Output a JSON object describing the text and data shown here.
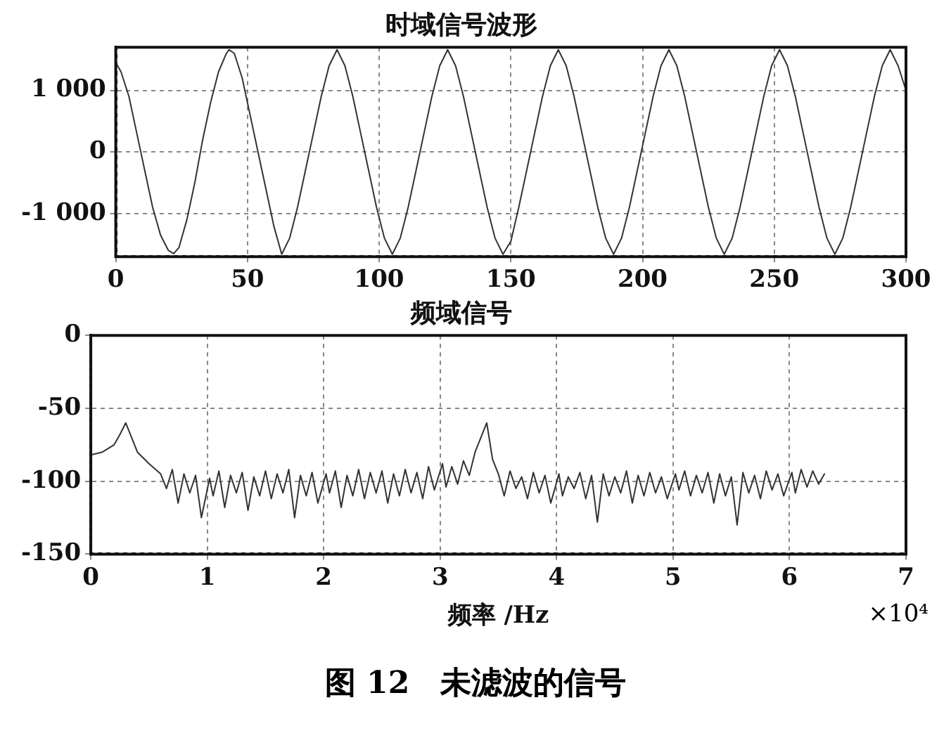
{
  "chart_data": [
    {
      "type": "line",
      "title": "时域信号波形",
      "color": "#333333",
      "grid": true,
      "x": [
        0,
        2,
        5,
        8,
        11,
        14,
        17,
        20,
        22,
        24,
        27,
        30,
        33,
        36,
        39,
        42,
        43,
        45,
        48,
        51,
        54,
        57,
        60,
        63,
        66,
        69,
        72,
        75,
        78,
        81,
        84,
        87,
        90,
        93,
        96,
        99,
        102,
        105,
        108,
        111,
        114,
        117,
        120,
        123,
        126,
        129,
        132,
        135,
        138,
        141,
        144,
        147,
        150,
        153,
        156,
        159,
        162,
        165,
        168,
        171,
        174,
        177,
        180,
        183,
        186,
        189,
        192,
        195,
        198,
        201,
        204,
        207,
        210,
        213,
        216,
        219,
        222,
        225,
        228,
        231,
        234,
        237,
        240,
        243,
        246,
        249,
        252,
        255,
        258,
        261,
        264,
        267,
        270,
        273,
        276,
        279,
        282,
        285,
        288,
        291,
        294,
        297,
        300
      ],
      "values": [
        1450,
        1300,
        900,
        300,
        -300,
        -900,
        -1350,
        -1600,
        -1650,
        -1550,
        -1100,
        -500,
        200,
        800,
        1300,
        1600,
        1660,
        1600,
        1200,
        600,
        0,
        -600,
        -1200,
        -1660,
        -1400,
        -900,
        -300,
        300,
        900,
        1400,
        1660,
        1400,
        900,
        300,
        -300,
        -900,
        -1400,
        -1660,
        -1400,
        -900,
        -300,
        300,
        900,
        1400,
        1660,
        1400,
        900,
        300,
        -300,
        -900,
        -1400,
        -1660,
        -1450,
        -900,
        -300,
        300,
        900,
        1400,
        1660,
        1400,
        900,
        300,
        -300,
        -900,
        -1400,
        -1660,
        -1400,
        -900,
        -300,
        300,
        900,
        1400,
        1660,
        1400,
        900,
        300,
        -300,
        -900,
        -1400,
        -1660,
        -1400,
        -900,
        -300,
        300,
        900,
        1400,
        1660,
        1400,
        900,
        300,
        -300,
        -900,
        -1400,
        -1660,
        -1400,
        -900,
        -300,
        300,
        900,
        1400,
        1660,
        1400,
        1000
      ],
      "xlim": [
        0,
        300
      ],
      "xticks": [
        0,
        50,
        100,
        150,
        200,
        250,
        300
      ],
      "ylim": [
        -1700,
        1700
      ],
      "yticks": [
        {
          "value": -1000,
          "label": "-1 000"
        },
        0,
        {
          "value": 1000,
          "label": "1 000"
        }
      ]
    },
    {
      "type": "line",
      "title": "频域信号",
      "xlabel": "频率 /Hz",
      "color": "#333333",
      "grid": true,
      "x": [
        0,
        0.1,
        0.2,
        0.25,
        0.3,
        0.35,
        0.4,
        0.5,
        0.6,
        0.65,
        0.7,
        0.75,
        0.8,
        0.85,
        0.9,
        0.95,
        1.02,
        1.05,
        1.1,
        1.15,
        1.2,
        1.25,
        1.3,
        1.35,
        1.4,
        1.45,
        1.5,
        1.55,
        1.6,
        1.65,
        1.7,
        1.75,
        1.8,
        1.85,
        1.9,
        1.95,
        2.02,
        2.05,
        2.1,
        2.15,
        2.2,
        2.25,
        2.3,
        2.35,
        2.4,
        2.45,
        2.5,
        2.55,
        2.6,
        2.65,
        2.7,
        2.75,
        2.8,
        2.85,
        2.9,
        2.95,
        3.02,
        3.05,
        3.1,
        3.15,
        3.2,
        3.25,
        3.3,
        3.35,
        3.4,
        3.45,
        3.5,
        3.55,
        3.6,
        3.65,
        3.7,
        3.75,
        3.8,
        3.85,
        3.9,
        3.95,
        4.02,
        4.05,
        4.1,
        4.15,
        4.2,
        4.25,
        4.3,
        4.35,
        4.4,
        4.45,
        4.5,
        4.55,
        4.6,
        4.65,
        4.7,
        4.75,
        4.8,
        4.85,
        4.9,
        4.95,
        5.02,
        5.05,
        5.1,
        5.15,
        5.2,
        5.25,
        5.3,
        5.35,
        5.4,
        5.45,
        5.5,
        5.55,
        5.6,
        5.65,
        5.7,
        5.75,
        5.8,
        5.85,
        5.9,
        5.95,
        6.02,
        6.05,
        6.1,
        6.15,
        6.2,
        6.25,
        6.3
      ],
      "values": [
        -82,
        -80,
        -75,
        -68,
        -60,
        -70,
        -80,
        -88,
        -95,
        -105,
        -92,
        -115,
        -95,
        -108,
        -96,
        -125,
        -98,
        -110,
        -93,
        -118,
        -96,
        -108,
        -94,
        -120,
        -97,
        -110,
        -93,
        -112,
        -95,
        -108,
        -92,
        -125,
        -96,
        -110,
        -94,
        -115,
        -95,
        -108,
        -93,
        -118,
        -96,
        -110,
        -92,
        -112,
        -94,
        -108,
        -93,
        -115,
        -95,
        -110,
        -92,
        -108,
        -94,
        -112,
        -90,
        -106,
        -88,
        -104,
        -90,
        -102,
        -86,
        -96,
        -80,
        -70,
        -60,
        -85,
        -95,
        -110,
        -93,
        -105,
        -97,
        -112,
        -94,
        -108,
        -96,
        -115,
        -95,
        -110,
        -97,
        -105,
        -94,
        -112,
        -96,
        -128,
        -95,
        -110,
        -97,
        -108,
        -93,
        -115,
        -96,
        -110,
        -94,
        -108,
        -97,
        -112,
        -95,
        -106,
        -93,
        -110,
        -96,
        -108,
        -94,
        -115,
        -95,
        -110,
        -97,
        -130,
        -94,
        -108,
        -96,
        -112,
        -93,
        -106,
        -95,
        -110,
        -94,
        -108,
        -92,
        -104,
        -93,
        -102,
        -95
      ],
      "xlim": [
        0,
        7
      ],
      "xticks": [
        0,
        1,
        2,
        3,
        4,
        5,
        6,
        7
      ],
      "ylim": [
        -150,
        0
      ],
      "yticks": [
        -150,
        -100,
        -50,
        0
      ],
      "annotations": [
        "×10⁴",
        "图 12　未滤波的信号"
      ]
    }
  ]
}
